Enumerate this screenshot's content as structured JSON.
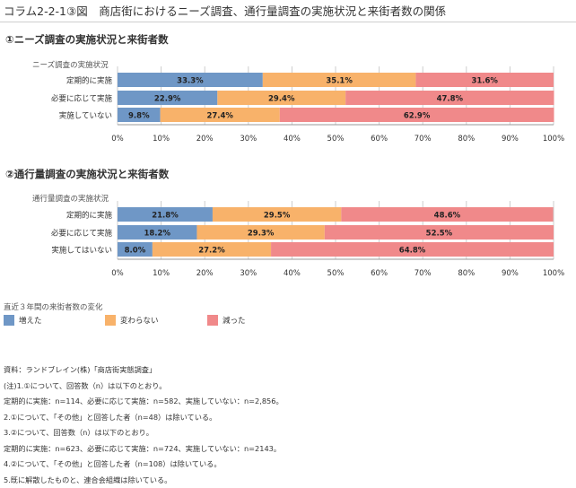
{
  "figure_title": "コラム2-2-1③図　商店街におけるニーズ調査、通行量調査の実施状況と来街者数の関係",
  "chart_data": [
    {
      "type": "bar",
      "orientation": "horizontal",
      "stacked": true,
      "title": "①ニーズ調査の実施状況と来街者数",
      "ylabel": "ニーズ調査の実施状況",
      "categories": [
        "定期的に実施",
        "必要に応じて実施",
        "実施していない"
      ],
      "series": [
        {
          "name": "増えた",
          "values": [
            33.3,
            22.9,
            9.8
          ]
        },
        {
          "name": "変わらない",
          "values": [
            35.1,
            29.4,
            27.4
          ]
        },
        {
          "name": "減った",
          "values": [
            31.6,
            47.8,
            62.9
          ]
        }
      ],
      "xlim": [
        0,
        100
      ],
      "xticks": [
        "0%",
        "10%",
        "20%",
        "30%",
        "40%",
        "50%",
        "60%",
        "70%",
        "80%",
        "90%",
        "100%"
      ]
    },
    {
      "type": "bar",
      "orientation": "horizontal",
      "stacked": true,
      "title": "②通行量調査の実施状況と来街者数",
      "ylabel": "通行量調査の実施状況",
      "categories": [
        "定期的に実施",
        "必要に応じて実施",
        "実施してはいない"
      ],
      "series": [
        {
          "name": "増えた",
          "values": [
            21.8,
            18.2,
            8.0
          ]
        },
        {
          "name": "変わらない",
          "values": [
            29.5,
            29.3,
            27.2
          ]
        },
        {
          "name": "減った",
          "values": [
            48.6,
            52.5,
            64.8
          ]
        }
      ],
      "xlim": [
        0,
        100
      ],
      "xticks": [
        "0%",
        "10%",
        "20%",
        "30%",
        "40%",
        "50%",
        "60%",
        "70%",
        "80%",
        "90%",
        "100%"
      ]
    }
  ],
  "legend": {
    "title": "直近３年間の来街者数の変化",
    "items": [
      {
        "label": "増えた",
        "color": "#6f97c6"
      },
      {
        "label": "変わらない",
        "color": "#f8b26a"
      },
      {
        "label": "減った",
        "color": "#f0898a"
      }
    ]
  },
  "colors": {
    "increase": "#6f97c6",
    "same": "#f8b26a",
    "decrease": "#f0898a",
    "grid": "#cccccc"
  },
  "notes": [
    "資料：ランドブレイン(株)「商店街実態調査」",
    "(注)1.①について、回答数（n）は以下のとおり。",
    "定期的に実施：n=114、必要に応じて実施：n=582、実施していない：n=2,856。",
    "2.①について、「その他」と回答した者（n=48）は除いている。",
    "3.②について、回答数（n）は以下のとおり。",
    "定期的に実施：n=623、必要に応じて実施：n=724、実施していない：n=2143。",
    "4.②について、「その他」と回答した者（n=108）は除いている。",
    "5.既に解散したものと、連合会組織は除いている。"
  ]
}
